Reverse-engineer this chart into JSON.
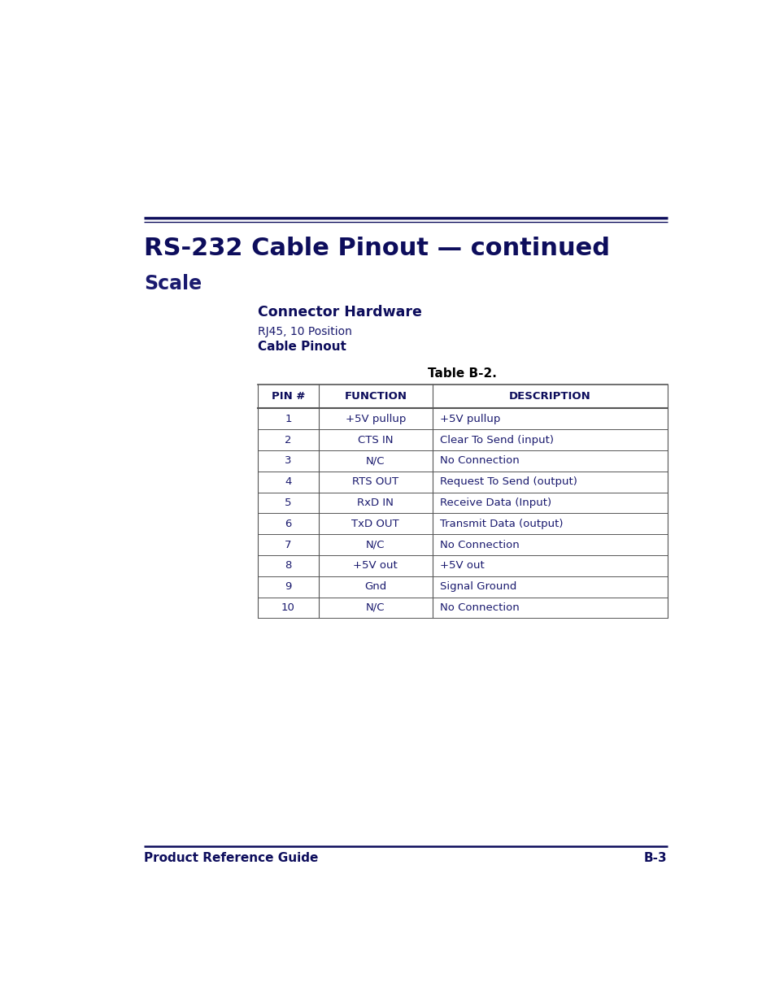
{
  "title": "RS-232 Cable Pinout — continued",
  "subtitle": "Scale",
  "connector_hardware_label": "Connector Hardware",
  "connector_type": "RJ45, 10 Position",
  "cable_pinout_label": "Cable Pinout",
  "table_title": "Table B-2.",
  "table_headers": [
    "PIN #",
    "FUNCTION",
    "DESCRIPTION"
  ],
  "table_rows": [
    [
      "1",
      "+5V pullup",
      "+5V pullup"
    ],
    [
      "2",
      "CTS IN",
      "Clear To Send (input)"
    ],
    [
      "3",
      "N/C",
      "No Connection"
    ],
    [
      "4",
      "RTS OUT",
      "Request To Send (output)"
    ],
    [
      "5",
      "RxD IN",
      "Receive Data (Input)"
    ],
    [
      "6",
      "TxD OUT",
      "Transmit Data (output)"
    ],
    [
      "7",
      "N/C",
      "No Connection"
    ],
    [
      "8",
      "+5V out",
      "+5V out"
    ],
    [
      "9",
      "Gnd",
      "Signal Ground"
    ],
    [
      "10",
      "N/C",
      "No Connection"
    ]
  ],
  "footer_left": "Product Reference Guide",
  "footer_right": "B-3",
  "navy_color": "#1a1a6e",
  "dark_navy": "#0d0d5c",
  "table_border_color": "#333333",
  "background_color": "#ffffff",
  "page_width": 9.54,
  "page_height": 12.35,
  "dpi": 100
}
